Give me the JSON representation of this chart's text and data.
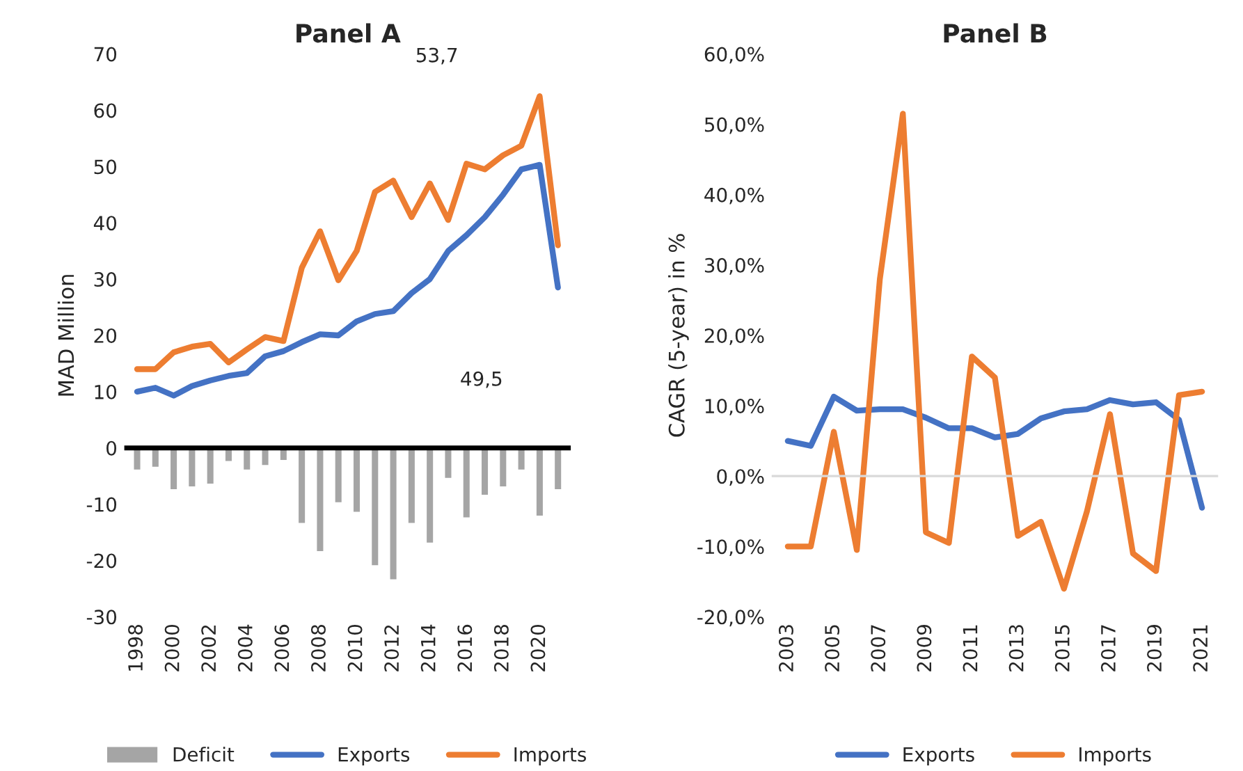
{
  "chart_data": [
    {
      "type": "line",
      "title": "Panel A",
      "ylabel": "MAD Million",
      "categories": [
        "1998",
        null,
        "2000",
        null,
        "2002",
        null,
        "2004",
        null,
        "2006",
        null,
        "2008",
        null,
        "2010",
        null,
        "2012",
        null,
        "2014",
        null,
        "2016",
        null,
        "2018",
        null,
        "2020",
        null
      ],
      "series": [
        {
          "name": "Deficit",
          "type": "bar",
          "color": "#a5a5a5",
          "values": [
            -4,
            -3.5,
            -7.5,
            -7,
            -6.5,
            -2.5,
            -4,
            -3.2,
            -2.3,
            -13.5,
            -18.5,
            -9.8,
            -11.5,
            -21,
            -23.5,
            -13.5,
            -17,
            -5.5,
            -12.5,
            -8.5,
            -7,
            -4,
            -12.2,
            -7.5
          ]
        },
        {
          "name": "Exports",
          "type": "line",
          "color": "#4472c4",
          "values": [
            10,
            10.7,
            9.3,
            11,
            12,
            12.8,
            13.3,
            16.3,
            17.2,
            18.8,
            20.2,
            20,
            22.5,
            23.8,
            24.3,
            27.5,
            30,
            35,
            37.8,
            41,
            45,
            49.5,
            50.3,
            28.5
          ]
        },
        {
          "name": "Imports",
          "type": "line",
          "color": "#ed7d31",
          "values": [
            14,
            14,
            17,
            18,
            18.5,
            15.2,
            17.5,
            19.7,
            19,
            32,
            38.5,
            29.8,
            35,
            45.5,
            47.5,
            41,
            47,
            40.5,
            50.5,
            49.5,
            52,
            53.7,
            62.5,
            36
          ]
        }
      ],
      "annotations": [
        "53,7",
        "49,5"
      ],
      "ylim": [
        -30,
        70
      ],
      "yticks": [
        -30,
        -20,
        -10,
        0,
        10,
        20,
        30,
        40,
        50,
        60,
        70
      ],
      "ref_lines": [
        {
          "axis": "y",
          "value": 0,
          "color": "#000000"
        }
      ],
      "grid": false,
      "legend": "bottom"
    },
    {
      "type": "line",
      "title": "Panel B",
      "ylabel": "CAGR (5-year) in %",
      "categories": [
        "2003",
        null,
        "2005",
        null,
        "2007",
        null,
        "2009",
        null,
        "2011",
        null,
        "2013",
        null,
        "2015",
        null,
        "2017",
        null,
        "2019",
        null,
        "2021"
      ],
      "series": [
        {
          "name": "Exports",
          "color": "#4472c4",
          "values": [
            5,
            4.3,
            11.3,
            9.3,
            9.5,
            9.5,
            8.3,
            6.8,
            6.8,
            5.5,
            6,
            8.2,
            9.2,
            9.5,
            10.8,
            10.2,
            10.5,
            8,
            -4.5
          ]
        },
        {
          "name": "Imports",
          "color": "#ed7d31",
          "values": [
            -10,
            -10,
            6.3,
            -10.5,
            28,
            51.5,
            -8,
            -9.5,
            17,
            14,
            -8.5,
            -6.5,
            -16,
            -5,
            8.8,
            -11,
            -13.5,
            11.5,
            12
          ]
        }
      ],
      "ylim": [
        -20,
        60
      ],
      "yticks": [
        {
          "value": -20,
          "label": "-20,0%"
        },
        {
          "value": -10,
          "label": "-10,0%"
        },
        {
          "value": 0,
          "label": "0,0%"
        },
        {
          "value": 10,
          "label": "10,0%"
        },
        {
          "value": 20,
          "label": "20,0%"
        },
        {
          "value": 30,
          "label": "30,0%"
        },
        {
          "value": 40,
          "label": "40,0%"
        },
        {
          "value": 50,
          "label": "50,0%"
        },
        {
          "value": 60,
          "label": "60,0%"
        }
      ],
      "ref_lines": [
        {
          "axis": "y",
          "value": 0,
          "color": "#d9d9d9"
        }
      ],
      "grid": false,
      "legend": "bottom"
    }
  ]
}
